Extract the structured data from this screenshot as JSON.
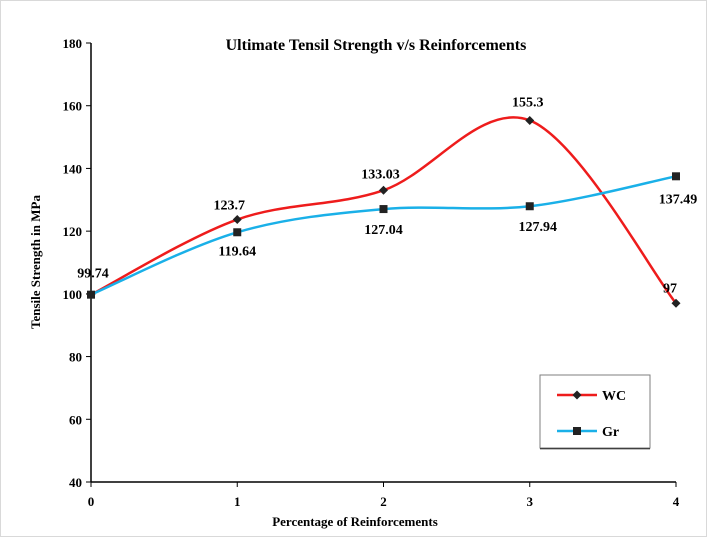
{
  "chart_data": {
    "type": "line",
    "title": "Ultimate Tensil Strength v/s Reinforcements",
    "xlabel": "Percentage of Reinforcements",
    "ylabel": "Tensile Strength in MPa",
    "x": [
      0,
      1,
      2,
      3,
      4
    ],
    "xlim": [
      0,
      4
    ],
    "ylim": [
      40,
      180
    ],
    "y_ticks": [
      40,
      60,
      80,
      100,
      120,
      140,
      160,
      180
    ],
    "x_tick_labels": [
      "0",
      "1",
      "2",
      "3",
      "4"
    ],
    "y_tick_labels": [
      "40",
      "60",
      "80",
      "100",
      "120",
      "140",
      "160",
      "180"
    ],
    "grid": false,
    "smooth": true,
    "legend_position": "lower-right",
    "series": [
      {
        "name": "WC",
        "color": "#ee1c1c",
        "marker": "diamond",
        "values": [
          99.74,
          123.7,
          133.03,
          155.3,
          97
        ],
        "labels": [
          "99.74",
          "123.7",
          "133.03",
          "155.3",
          "97"
        ]
      },
      {
        "name": "Gr",
        "color": "#1ab0e8",
        "marker": "square",
        "values": [
          99.74,
          119.64,
          127.04,
          127.94,
          137.49
        ],
        "labels": [
          "",
          "119.64",
          "127.04",
          "127.94",
          "137.49"
        ]
      }
    ]
  }
}
